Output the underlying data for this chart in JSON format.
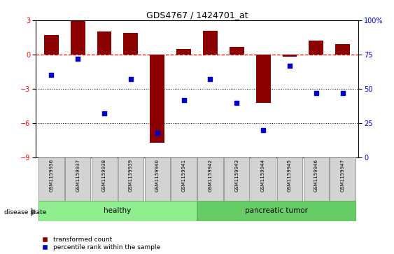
{
  "title": "GDS4767 / 1424701_at",
  "samples": [
    "GSM1159936",
    "GSM1159937",
    "GSM1159938",
    "GSM1159939",
    "GSM1159940",
    "GSM1159941",
    "GSM1159942",
    "GSM1159943",
    "GSM1159944",
    "GSM1159945",
    "GSM1159946",
    "GSM1159947"
  ],
  "transformed_count": [
    1.7,
    3.0,
    2.0,
    1.9,
    -7.7,
    0.5,
    2.1,
    0.7,
    -4.2,
    -0.2,
    1.2,
    0.9
  ],
  "percentile_rank": [
    60,
    72,
    32,
    57,
    18,
    42,
    57,
    40,
    20,
    67,
    47,
    47
  ],
  "groups": [
    "healthy",
    "healthy",
    "healthy",
    "healthy",
    "healthy",
    "healthy",
    "pancreatic tumor",
    "pancreatic tumor",
    "pancreatic tumor",
    "pancreatic tumor",
    "pancreatic tumor",
    "pancreatic tumor"
  ],
  "healthy_color": "#90EE90",
  "tumor_color": "#66CC66",
  "bar_color": "#8B0000",
  "dot_color": "#0000CC",
  "ylim_left": [
    -9,
    3
  ],
  "ylim_right": [
    0,
    100
  ],
  "yticks_left": [
    -9,
    -6,
    -3,
    0,
    3
  ],
  "yticks_right": [
    0,
    25,
    50,
    75,
    100
  ],
  "hline_y": 0,
  "dotted_lines": [
    -3,
    -6
  ],
  "bar_width": 0.55,
  "n_healthy": 6,
  "n_tumor": 6
}
